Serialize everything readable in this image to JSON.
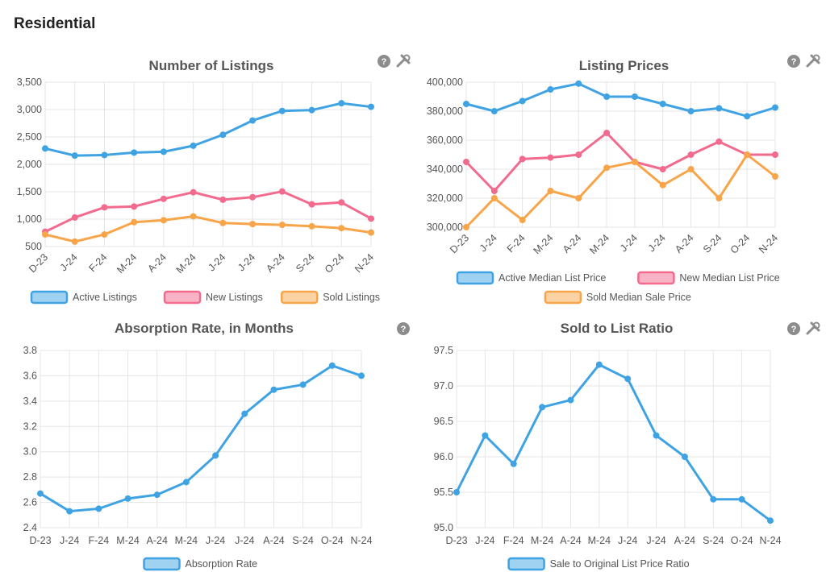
{
  "page": {
    "title": "Residential"
  },
  "icons": {
    "help": "help-icon",
    "tool": "wrench-icon",
    "colors": {
      "icon": "#8c8c8c"
    }
  },
  "chart_data": [
    {
      "id": "listings",
      "type": "line",
      "title": "Number of Listings",
      "categories": [
        "D-23",
        "J-24",
        "F-24",
        "M-24",
        "A-24",
        "M-24",
        "J-24",
        "J-24",
        "A-24",
        "S-24",
        "O-24",
        "N-24"
      ],
      "x_rotated": true,
      "ylim": [
        500,
        3500
      ],
      "yticks": [
        500,
        1000,
        1500,
        2000,
        2500,
        3000,
        3500
      ],
      "ytick_labels": [
        "500",
        "1,000",
        "1,500",
        "2,000",
        "2,500",
        "3,000",
        "3,500"
      ],
      "grid": true,
      "legend": "bottom",
      "has_tool_icon": true,
      "series": [
        {
          "name": "Active Listings",
          "color": "#3fa3e3",
          "values": [
            2290,
            2160,
            2170,
            2215,
            2230,
            2340,
            2540,
            2800,
            2975,
            2990,
            3115,
            3050
          ]
        },
        {
          "name": "New Listings",
          "color": "#f26a8d",
          "values": [
            770,
            1030,
            1215,
            1230,
            1370,
            1490,
            1355,
            1400,
            1505,
            1270,
            1305,
            1010
          ]
        },
        {
          "name": "Sold Listings",
          "color": "#f8a54a",
          "values": [
            720,
            590,
            720,
            945,
            980,
            1050,
            930,
            910,
            895,
            870,
            835,
            755
          ]
        }
      ]
    },
    {
      "id": "prices",
      "type": "line",
      "title": "Listing Prices",
      "categories": [
        "D-23",
        "J-24",
        "F-24",
        "M-24",
        "A-24",
        "M-24",
        "J-24",
        "J-24",
        "A-24",
        "S-24",
        "O-24",
        "N-24"
      ],
      "x_rotated": true,
      "ylim": [
        300000,
        400000
      ],
      "yticks": [
        300000,
        320000,
        340000,
        360000,
        380000,
        400000
      ],
      "ytick_labels": [
        "300,000",
        "320,000",
        "340,000",
        "360,000",
        "380,000",
        "400,000"
      ],
      "grid": true,
      "legend": "bottom",
      "has_tool_icon": true,
      "series": [
        {
          "name": "Active Median List Price",
          "color": "#3fa3e3",
          "values": [
            385000,
            380000,
            387000,
            395000,
            399000,
            390000,
            390000,
            385000,
            380000,
            382000,
            376500,
            382500
          ]
        },
        {
          "name": "New Median List Price",
          "color": "#f26a8d",
          "values": [
            345000,
            325000,
            347000,
            348000,
            350000,
            365000,
            345000,
            340000,
            350000,
            359000,
            350000,
            350000
          ]
        },
        {
          "name": "Sold Median Sale Price",
          "color": "#f8a54a",
          "values": [
            300000,
            320000,
            305000,
            325000,
            320000,
            341000,
            345000,
            329000,
            340000,
            320000,
            350000,
            335000
          ]
        }
      ]
    },
    {
      "id": "absorption",
      "type": "line",
      "title": "Absorption Rate, in Months",
      "categories": [
        "D-23",
        "J-24",
        "F-24",
        "M-24",
        "A-24",
        "M-24",
        "J-24",
        "J-24",
        "A-24",
        "S-24",
        "O-24",
        "N-24"
      ],
      "x_rotated": false,
      "ylim": [
        2.4,
        3.8
      ],
      "yticks": [
        2.4,
        2.6,
        2.8,
        3.0,
        3.2,
        3.4,
        3.6,
        3.8
      ],
      "ytick_labels": [
        "2.4",
        "2.6",
        "2.8",
        "3.0",
        "3.2",
        "3.4",
        "3.6",
        "3.8"
      ],
      "grid": true,
      "legend": "bottom",
      "has_tool_icon": false,
      "series": [
        {
          "name": "Absorption Rate",
          "color": "#3fa3e3",
          "values": [
            2.67,
            2.53,
            2.55,
            2.63,
            2.66,
            2.76,
            2.97,
            3.3,
            3.49,
            3.53,
            3.68,
            3.6
          ]
        }
      ]
    },
    {
      "id": "ratio",
      "type": "line",
      "title": "Sold to List Ratio",
      "categories": [
        "D-23",
        "J-24",
        "F-24",
        "M-24",
        "A-24",
        "M-24",
        "J-24",
        "J-24",
        "A-24",
        "S-24",
        "O-24",
        "N-24"
      ],
      "x_rotated": false,
      "ylim": [
        95.0,
        97.5
      ],
      "yticks": [
        95.0,
        95.5,
        96.0,
        96.5,
        97.0,
        97.5
      ],
      "ytick_labels": [
        "95.0",
        "95.5",
        "96.0",
        "96.5",
        "97.0",
        "97.5"
      ],
      "grid": true,
      "legend": "bottom",
      "has_tool_icon": true,
      "series": [
        {
          "name": "Sale to Original List Price Ratio",
          "color": "#3fa3e3",
          "values": [
            95.5,
            96.3,
            95.9,
            96.7,
            96.8,
            97.3,
            97.1,
            96.3,
            96.0,
            95.4,
            95.4,
            95.1
          ]
        }
      ]
    }
  ]
}
